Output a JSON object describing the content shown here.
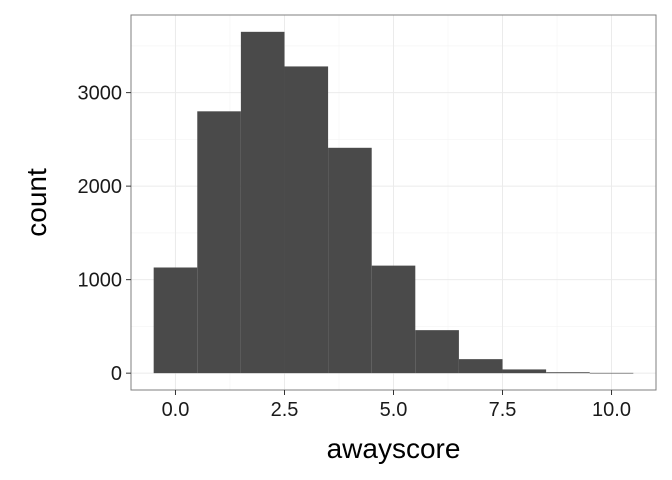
{
  "chart_data": {
    "type": "bar",
    "subtype": "histogram",
    "xlabel": "awayscore",
    "ylabel": "count",
    "xlim": [
      -0.5,
      10.5
    ],
    "ylim": [
      0,
      3650
    ],
    "x_ticks": [
      0,
      2.5,
      5,
      7.5,
      10
    ],
    "x_tick_labels": [
      "0.0",
      "2.5",
      "5.0",
      "7.5",
      "10.0"
    ],
    "y_ticks": [
      0,
      1000,
      2000,
      3000
    ],
    "y_tick_labels": [
      "0",
      "1000",
      "2000",
      "3000"
    ],
    "bin_width": 1,
    "bins": [
      {
        "x": 0,
        "count": 1130
      },
      {
        "x": 1,
        "count": 2800
      },
      {
        "x": 2,
        "count": 3650
      },
      {
        "x": 3,
        "count": 3280
      },
      {
        "x": 4,
        "count": 2410
      },
      {
        "x": 5,
        "count": 1150
      },
      {
        "x": 6,
        "count": 460
      },
      {
        "x": 7,
        "count": 150
      },
      {
        "x": 8,
        "count": 40
      },
      {
        "x": 9,
        "count": 10
      },
      {
        "x": 10,
        "count": 3
      }
    ],
    "grid": true,
    "colors": {
      "bar": "#4a4a4a",
      "grid_major": "#ebebeb",
      "grid_minor": "#f5f5f5",
      "panel_border": "#7f7f7f",
      "text": "#1a1a1a"
    }
  }
}
